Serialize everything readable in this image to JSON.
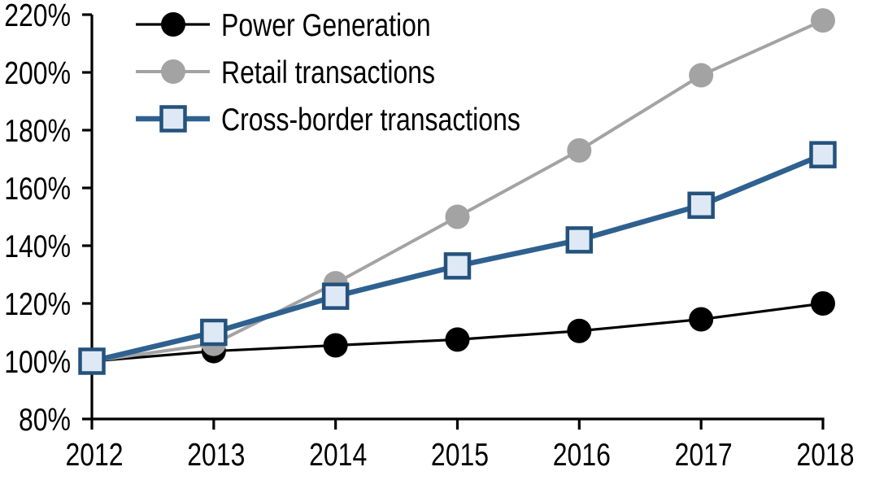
{
  "chart_data": {
    "type": "line",
    "title": "",
    "xlabel": "",
    "ylabel": "",
    "x": [
      2012,
      2013,
      2014,
      2015,
      2016,
      2017,
      2018
    ],
    "xtick_labels": [
      "2012",
      "2013",
      "2014",
      "2015",
      "2016",
      "2017",
      "2018"
    ],
    "ylim": [
      80,
      220
    ],
    "ytick_step": 20,
    "ytick_labels": [
      "80%",
      "100%",
      "120%",
      "140%",
      "160%",
      "180%",
      "200%",
      "220%"
    ],
    "grid": false,
    "legend_position": "top-left-inside",
    "series": [
      {
        "name": "Power Generation",
        "slug": "power-generation",
        "color": "#000000",
        "line_width": 3.2,
        "marker": "circle",
        "marker_fill": "#000000",
        "marker_stroke": "none",
        "values": [
          100,
          103.5,
          105.5,
          107.5,
          110.5,
          114.5,
          120
        ]
      },
      {
        "name": "Retail transactions",
        "slug": "retail-transactions",
        "color": "#A3A3A3",
        "line_width": 4,
        "marker": "circle",
        "marker_fill": "#A3A3A3",
        "marker_stroke": "none",
        "values": [
          100,
          106,
          127,
          150,
          173,
          199,
          218
        ]
      },
      {
        "name": "Cross-border transactions",
        "slug": "cross-border-transactions",
        "color": "#2E6190",
        "line_width": 6.5,
        "marker": "square",
        "marker_fill": "#DEE9F5",
        "marker_stroke": "#24527C",
        "values": [
          100,
          110,
          122.5,
          133,
          142,
          154,
          171.5
        ]
      }
    ]
  },
  "colors": {
    "axis": "#000000",
    "background": "#FFFFFF",
    "text": "#000000"
  }
}
